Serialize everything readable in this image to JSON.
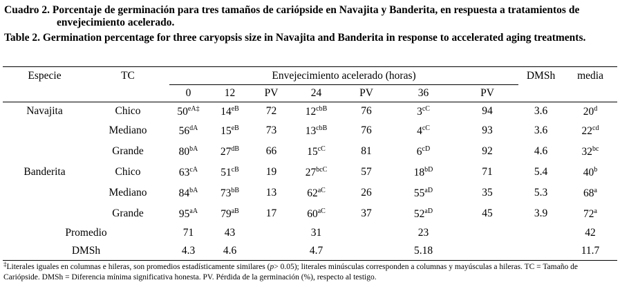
{
  "caption": {
    "es_label": "Cuadro 2.",
    "es_text": "Porcentaje de germinación para tres tamaños de cariópside en Navajita y Banderita, en respuesta a tratamientos de envejecimiento acelerado.",
    "en_label": "Table 2.",
    "en_text": "Germination percentage for three caryopsis size in Navajita and Banderita in response to accelerated aging treatments."
  },
  "table": {
    "header_top": {
      "especie": "Especie",
      "tc": "TC",
      "group": "Envejecimiento acelerado (horas)",
      "dmsh": "DMSh",
      "media": "media"
    },
    "header_sub": [
      "0",
      "12",
      "PV",
      "24",
      "PV",
      "36",
      "PV"
    ],
    "rows": [
      {
        "especie": "Navajita",
        "tc": "Chico",
        "cells": [
          {
            "v": 50,
            "s": "eA‡"
          },
          {
            "v": 14,
            "s": "eB"
          },
          {
            "v": 72
          },
          {
            "v": 12,
            "s": "cbB"
          },
          {
            "v": 76
          },
          {
            "v": 3,
            "s": "cC"
          },
          {
            "v": 94
          },
          {
            "v": 3.6
          },
          {
            "v": 20,
            "s": "d"
          }
        ]
      },
      {
        "especie": null,
        "tc": "Mediano",
        "cells": [
          {
            "v": 56,
            "s": "dA"
          },
          {
            "v": 15,
            "s": "eB"
          },
          {
            "v": 73
          },
          {
            "v": 13,
            "s": "cbB"
          },
          {
            "v": 76
          },
          {
            "v": 4,
            "s": "cC"
          },
          {
            "v": 93
          },
          {
            "v": 3.6
          },
          {
            "v": 22,
            "s": "cd"
          }
        ]
      },
      {
        "especie": null,
        "tc": "Grande",
        "cells": [
          {
            "v": 80,
            "s": "bA"
          },
          {
            "v": 27,
            "s": "dB"
          },
          {
            "v": 66
          },
          {
            "v": 15,
            "s": "cC"
          },
          {
            "v": 81
          },
          {
            "v": 6,
            "s": "cD"
          },
          {
            "v": 92
          },
          {
            "v": 4.6
          },
          {
            "v": 32,
            "s": "bc"
          }
        ]
      },
      {
        "especie": "Banderita",
        "tc": "Chico",
        "cells": [
          {
            "v": 63,
            "s": "cA"
          },
          {
            "v": 51,
            "s": "cB"
          },
          {
            "v": 19
          },
          {
            "v": 27,
            "s": "bcC"
          },
          {
            "v": 57
          },
          {
            "v": 18,
            "s": "bD"
          },
          {
            "v": 71
          },
          {
            "v": 5.4
          },
          {
            "v": 40,
            "s": "b"
          }
        ]
      },
      {
        "especie": null,
        "tc": "Mediano",
        "cells": [
          {
            "v": 84,
            "s": "bA"
          },
          {
            "v": 73,
            "s": "bB"
          },
          {
            "v": 13
          },
          {
            "v": 62,
            "s": "aC"
          },
          {
            "v": 26
          },
          {
            "v": 55,
            "s": "aD"
          },
          {
            "v": 35
          },
          {
            "v": 5.3
          },
          {
            "v": 68,
            "s": "a"
          }
        ]
      },
      {
        "especie": null,
        "tc": "Grande",
        "cells": [
          {
            "v": 95,
            "s": "aA"
          },
          {
            "v": 79,
            "s": "aB"
          },
          {
            "v": 17
          },
          {
            "v": 60,
            "s": "aC"
          },
          {
            "v": 37
          },
          {
            "v": 52,
            "s": "aD"
          },
          {
            "v": 45
          },
          {
            "v": 3.9
          },
          {
            "v": 72,
            "s": "a"
          }
        ]
      }
    ],
    "summary": [
      {
        "label": "Promedio",
        "cells": [
          {
            "v": 71
          },
          {
            "v": 43
          },
          null,
          {
            "v": 31
          },
          null,
          {
            "v": 23
          },
          null,
          null,
          {
            "v": 42
          }
        ]
      },
      {
        "label": "DMSh",
        "cells": [
          {
            "v": 4.3
          },
          {
            "v": 4.6
          },
          null,
          {
            "v": 4.7
          },
          null,
          {
            "v": 5.18
          },
          null,
          null,
          {
            "v": 11.7
          }
        ]
      }
    ]
  },
  "footnote": {
    "marker": "‡",
    "text1": "Literales iguales en columnas e hileras, son promedios estadísticamente similares (",
    "italic": "p",
    "text2": "> 0.05); literales minúsculas corresponden a columnas y mayúsculas a hileras. TC = Tamaño de Cariópside. DMSh = Diferencia mínima significativa honesta. PV. Pérdida de la germinación (%), respecto al testigo."
  }
}
